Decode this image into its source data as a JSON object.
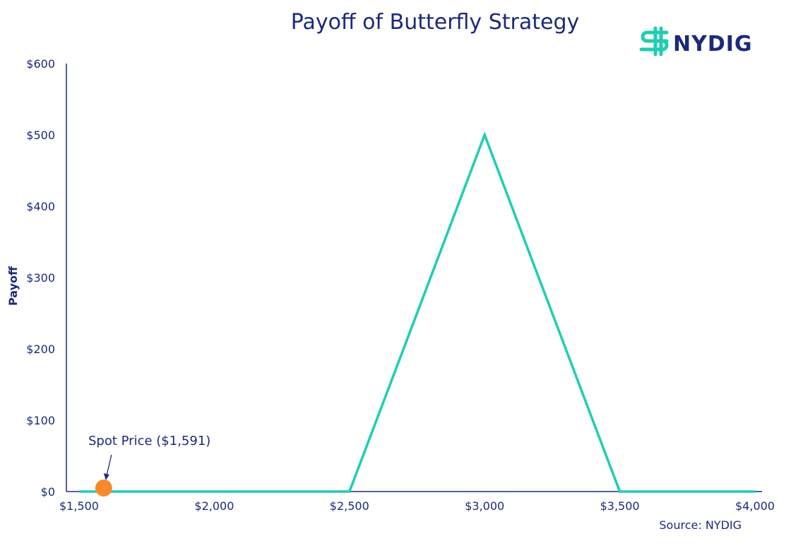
{
  "chart_data": {
    "type": "line",
    "title": "Payoff of Butterfly Strategy",
    "ylabel": "Payoff",
    "xlabel": "",
    "x": [
      1500,
      2500,
      3000,
      3500,
      4000
    ],
    "series": [
      {
        "values": [
          0,
          0,
          500,
          0,
          0
        ]
      }
    ],
    "xlim": [
      1500,
      4000
    ],
    "ylim": [
      0,
      600
    ],
    "x_ticks": [
      1500,
      2000,
      2500,
      3000,
      3500,
      4000
    ],
    "x_tick_labels": [
      "$1,500",
      "$2,000",
      "$2,500",
      "$3,000",
      "$3,500",
      "$4,000"
    ],
    "y_ticks": [
      0,
      100,
      200,
      300,
      400,
      500,
      600
    ],
    "y_tick_labels": [
      "$0",
      "$100",
      "$200",
      "$300",
      "$400",
      "$500",
      "$600"
    ],
    "spot_point": {
      "x": 1591,
      "y": 0
    },
    "annotation": "Spot Price ($1,591)",
    "grid": false,
    "source": "Source: NYDIG",
    "logo_text": "NYDIG",
    "colors": {
      "line": "#1fcdb2",
      "spot": "#f7892b",
      "text": "#1b2a7a",
      "axis": "#1b2a7a",
      "logo_mark": "#1fcdb2"
    }
  }
}
